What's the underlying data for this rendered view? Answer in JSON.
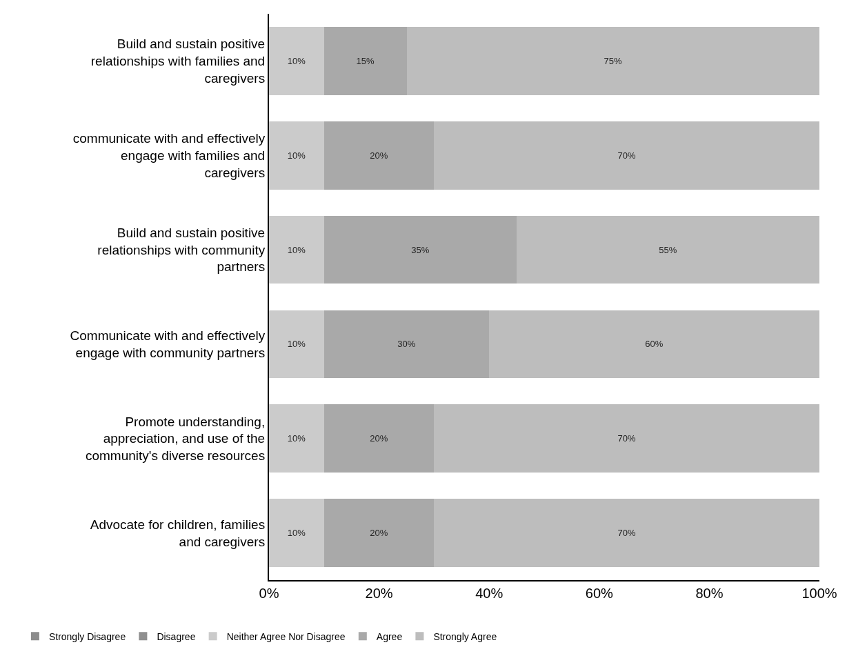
{
  "chart_data": {
    "type": "bar",
    "orientation": "horizontal",
    "stacked": true,
    "categories": [
      "Build and sustain positive relationships with families and caregivers",
      "communicate with and effectively engage with families and caregivers",
      "Build and sustain positive relationships with community partners",
      "Communicate with and effectively engage with community partners",
      "Promote understanding, appreciation, and use of the community's diverse resources",
      "Advocate for children, families and caregivers"
    ],
    "series": [
      {
        "name": "Strongly Disagree",
        "color": "#8c8c8c",
        "values": [
          0,
          0,
          0,
          0,
          0,
          0
        ],
        "value_labels": [
          null,
          null,
          null,
          null,
          null,
          null
        ]
      },
      {
        "name": "Disagree",
        "color": "#8f8f8f",
        "values": [
          0,
          0,
          0,
          0,
          0,
          0
        ],
        "value_labels": [
          null,
          null,
          null,
          null,
          null,
          null
        ]
      },
      {
        "name": "Neither Agree Nor Disagree",
        "color": "#cbcbcb",
        "values": [
          10,
          10,
          10,
          10,
          10,
          10
        ],
        "value_labels": [
          "10%",
          "10%",
          "10%",
          "10%",
          "10%",
          "10%"
        ]
      },
      {
        "name": "Agree",
        "color": "#a9a9a9",
        "values": [
          15,
          20,
          35,
          30,
          20,
          20
        ],
        "value_labels": [
          "15%",
          "20%",
          "35%",
          "30%",
          "20%",
          "20%"
        ]
      },
      {
        "name": "Strongly Agree",
        "color": "#bdbdbd",
        "values": [
          75,
          70,
          55,
          60,
          70,
          70
        ],
        "value_labels": [
          "75%",
          "70%",
          "55%",
          "60%",
          "70%",
          "70%"
        ]
      }
    ],
    "xlim": [
      0,
      100
    ],
    "xticks": [
      {
        "value": 0,
        "label": "0%"
      },
      {
        "value": 20,
        "label": "20%"
      },
      {
        "value": 40,
        "label": "40%"
      },
      {
        "value": 60,
        "label": "60%"
      },
      {
        "value": 80,
        "label": "80%"
      },
      {
        "value": 100,
        "label": "100%"
      }
    ],
    "legend": "bottom"
  }
}
